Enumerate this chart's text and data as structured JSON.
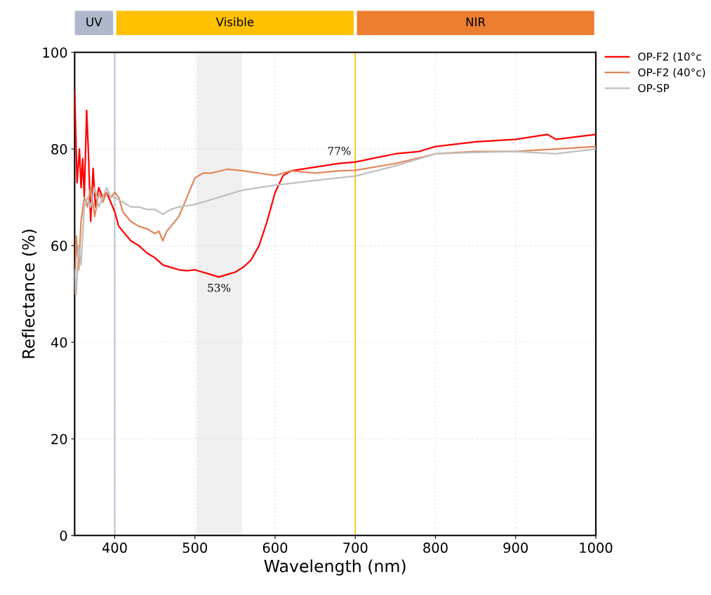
{
  "chart_data": {
    "type": "line",
    "xlabel": "Wavelength (nm)",
    "ylabel": "Reflectance (%)",
    "xlim": [
      350,
      1000
    ],
    "xticks": [
      400,
      500,
      600,
      700,
      800,
      900,
      1000
    ],
    "ylim": [
      0,
      100
    ],
    "yticks": [
      0,
      20,
      40,
      60,
      80,
      100
    ],
    "grid": true,
    "legend": "top right",
    "series": [
      {
        "name": "OP-F2 (10°c",
        "color": "#ff0000",
        "x": [
          350,
          353,
          356,
          358,
          360,
          362,
          365,
          367,
          370,
          373,
          376,
          380,
          385,
          390,
          395,
          400,
          405,
          410,
          420,
          430,
          440,
          450,
          460,
          470,
          480,
          490,
          500,
          510,
          520,
          530,
          540,
          550,
          560,
          570,
          580,
          590,
          600,
          610,
          620,
          640,
          660,
          680,
          700,
          720,
          750,
          780,
          800,
          850,
          900,
          940,
          950,
          1000
        ],
        "values": [
          92,
          73,
          80,
          72,
          78,
          70,
          88,
          80,
          65,
          76,
          68,
          72,
          70,
          71,
          69,
          67,
          64,
          63,
          61,
          60,
          58.5,
          57.5,
          56,
          55.5,
          55,
          54.8,
          55,
          54.5,
          54,
          53.5,
          54,
          54.5,
          55.5,
          57,
          60,
          65,
          71,
          74.5,
          75.5,
          76,
          76.5,
          77,
          77.3,
          78,
          79,
          79.5,
          80.5,
          81.5,
          82,
          83,
          82,
          83
        ]
      },
      {
        "name": "OP-F2 (40°c)",
        "color": "#e0875a",
        "x": [
          350,
          352,
          355,
          358,
          362,
          366,
          370,
          375,
          380,
          385,
          390,
          395,
          400,
          405,
          410,
          420,
          430,
          440,
          450,
          455,
          460,
          465,
          470,
          480,
          490,
          500,
          510,
          520,
          540,
          560,
          580,
          600,
          610,
          620,
          650,
          680,
          700,
          750,
          800,
          850,
          900,
          950,
          1000
        ],
        "values": [
          50,
          62,
          55,
          65,
          70,
          68,
          72,
          66,
          71,
          69,
          71,
          70,
          71,
          70,
          67,
          65,
          64,
          63.5,
          62.5,
          63,
          61,
          63,
          64,
          66,
          70,
          74,
          75,
          75,
          75.8,
          75.5,
          75,
          74.5,
          75,
          75.5,
          75,
          75.5,
          75.6,
          77,
          79,
          79.5,
          79.5,
          80,
          80.5
        ]
      },
      {
        "name": "OP-SP",
        "color": "#bfbfbf",
        "x": [
          350,
          352,
          355,
          358,
          362,
          366,
          370,
          375,
          380,
          385,
          390,
          395,
          400,
          410,
          420,
          430,
          440,
          450,
          460,
          470,
          480,
          500,
          520,
          540,
          560,
          580,
          600,
          650,
          700,
          750,
          800,
          850,
          900,
          950,
          1000
        ],
        "values": [
          55,
          50,
          60,
          56,
          68,
          70,
          68,
          72,
          68,
          70,
          72,
          70,
          70,
          69,
          68,
          68,
          67.5,
          67.5,
          66.5,
          67.5,
          68,
          68.5,
          69.5,
          70.5,
          71.5,
          72,
          72.5,
          73.5,
          74.4,
          76.5,
          79,
          79.3,
          79.5,
          79,
          80
        ]
      }
    ],
    "ref_lines": [
      {
        "axis": "x",
        "value": 400,
        "color": "#a9b7cb"
      },
      {
        "axis": "x",
        "value": 700,
        "color": "#ffc000"
      }
    ],
    "bands": [
      {
        "axis": "x",
        "from": 502,
        "to": 559,
        "color": "#f0f0f0"
      }
    ],
    "annotations": [
      {
        "text": "53%",
        "x": 530,
        "y": 53.5
      },
      {
        "text": "77%",
        "x": 680,
        "y": 77
      },
      "UV",
      "Visible",
      "NIR"
    ]
  }
}
